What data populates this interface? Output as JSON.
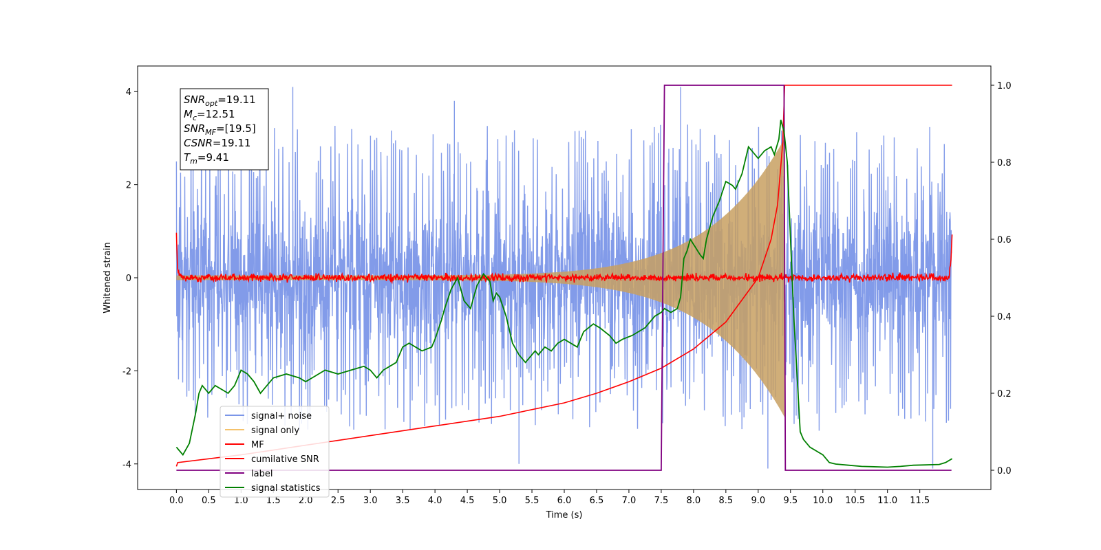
{
  "chart_data": {
    "type": "line",
    "title": "",
    "xlabel": "Time (s)",
    "ylabel": "Whitened strain",
    "xlim": [
      -0.6,
      12.6
    ],
    "ylim": [
      -4.55,
      4.55
    ],
    "ylim_right": [
      -0.05,
      1.05
    ],
    "x_ticks": [
      "0.0",
      "0.5",
      "1.0",
      "1.5",
      "2.0",
      "2.5",
      "3.0",
      "3.5",
      "4.0",
      "4.5",
      "5.0",
      "5.5",
      "6.0",
      "6.5",
      "7.0",
      "7.5",
      "8.0",
      "8.5",
      "9.0",
      "9.5",
      "10.0",
      "10.5",
      "11.0",
      "11.5"
    ],
    "y_ticks_left": [
      "-4",
      "-2",
      "0",
      "2",
      "4"
    ],
    "y_ticks_right": [
      "0.0",
      "0.2",
      "0.4",
      "0.6",
      "0.8",
      "1.0"
    ],
    "annotation": {
      "lines": [
        {
          "base": "SNR",
          "sub": "opt",
          "value": "=19.11"
        },
        {
          "base": "M",
          "sub": "c",
          "value": "=12.51"
        },
        {
          "base": "SNR",
          "sub": "MF",
          "value": "=[19.5]"
        },
        {
          "base": "CSNR",
          "sub": "",
          "value": "=19.11"
        },
        {
          "base": "T",
          "sub": "m",
          "value": "=9.41"
        }
      ]
    },
    "legend": {
      "placement": "lower-left",
      "entries": [
        {
          "label": "signal+ noise",
          "color": "#7b96e8"
        },
        {
          "label": "signal only",
          "color": "#f5c26b"
        },
        {
          "label": "MF",
          "color": "#ff0000"
        },
        {
          "label": "cumilative SNR",
          "color": "#ff0000"
        },
        {
          "label": "label",
          "color": "#800080"
        },
        {
          "label": "signal statistics",
          "color": "#008000"
        }
      ]
    },
    "series": [
      {
        "name": "signal+ noise",
        "axis": "left",
        "style": "noise band",
        "color": "#7b96e8",
        "x_range": [
          0.0,
          11.99
        ],
        "envelope": [
          -3.0,
          3.0
        ],
        "spikes": [
          [
            1.8,
            4.1
          ],
          [
            7.8,
            4.1
          ],
          [
            9.15,
            -4.1
          ],
          [
            11.7,
            -4.1
          ],
          [
            4.3,
            3.8
          ],
          [
            5.3,
            -4.0
          ]
        ]
      },
      {
        "name": "signal only",
        "axis": "left",
        "style": "chirp",
        "color": "#f5c26b",
        "x_range": [
          0.0,
          9.41
        ],
        "amplitude_start": 0.05,
        "amplitude_end": 3.0
      },
      {
        "name": "MF",
        "axis": "left",
        "color": "#ff0000",
        "points": [
          [
            0.0,
            1.0
          ],
          [
            0.02,
            0.1
          ],
          [
            0.1,
            0.0
          ],
          [
            11.95,
            0.0
          ],
          [
            11.98,
            0.3
          ],
          [
            12.0,
            0.9
          ]
        ],
        "noise": 0.1
      },
      {
        "name": "cumilative SNR",
        "axis": "right",
        "color": "#ff0000",
        "points": [
          [
            0.0,
            0.01
          ],
          [
            0.02,
            0.02
          ],
          [
            1.0,
            0.04
          ],
          [
            2.0,
            0.065
          ],
          [
            3.0,
            0.09
          ],
          [
            4.0,
            0.115
          ],
          [
            5.0,
            0.14
          ],
          [
            6.0,
            0.175
          ],
          [
            6.5,
            0.2
          ],
          [
            7.0,
            0.23
          ],
          [
            7.5,
            0.265
          ],
          [
            8.0,
            0.315
          ],
          [
            8.5,
            0.385
          ],
          [
            9.0,
            0.5
          ],
          [
            9.2,
            0.6
          ],
          [
            9.3,
            0.69
          ],
          [
            9.38,
            0.85
          ],
          [
            9.41,
            1.0
          ],
          [
            12.0,
            1.0
          ]
        ]
      },
      {
        "name": "label",
        "axis": "right",
        "color": "#800080",
        "points": [
          [
            0.0,
            0.0
          ],
          [
            7.5,
            0.0
          ],
          [
            7.55,
            1.0
          ],
          [
            9.4,
            1.0
          ],
          [
            9.42,
            0.0
          ],
          [
            11.99,
            0.0
          ]
        ]
      },
      {
        "name": "signal statistics",
        "axis": "right",
        "color": "#008000",
        "points": [
          [
            0.0,
            0.06
          ],
          [
            0.05,
            0.05
          ],
          [
            0.1,
            0.04
          ],
          [
            0.2,
            0.07
          ],
          [
            0.3,
            0.15
          ],
          [
            0.35,
            0.2
          ],
          [
            0.4,
            0.22
          ],
          [
            0.5,
            0.2
          ],
          [
            0.6,
            0.22
          ],
          [
            0.7,
            0.21
          ],
          [
            0.8,
            0.2
          ],
          [
            0.9,
            0.22
          ],
          [
            1.0,
            0.26
          ],
          [
            1.1,
            0.25
          ],
          [
            1.2,
            0.23
          ],
          [
            1.3,
            0.2
          ],
          [
            1.5,
            0.24
          ],
          [
            1.7,
            0.25
          ],
          [
            1.9,
            0.24
          ],
          [
            2.0,
            0.23
          ],
          [
            2.1,
            0.24
          ],
          [
            2.3,
            0.26
          ],
          [
            2.5,
            0.25
          ],
          [
            2.7,
            0.26
          ],
          [
            2.9,
            0.27
          ],
          [
            3.0,
            0.26
          ],
          [
            3.1,
            0.24
          ],
          [
            3.2,
            0.26
          ],
          [
            3.4,
            0.28
          ],
          [
            3.5,
            0.32
          ],
          [
            3.6,
            0.33
          ],
          [
            3.7,
            0.32
          ],
          [
            3.8,
            0.31
          ],
          [
            3.95,
            0.32
          ],
          [
            4.0,
            0.34
          ],
          [
            4.1,
            0.39
          ],
          [
            4.15,
            0.42
          ],
          [
            4.25,
            0.47
          ],
          [
            4.35,
            0.5
          ],
          [
            4.45,
            0.44
          ],
          [
            4.55,
            0.42
          ],
          [
            4.6,
            0.45
          ],
          [
            4.65,
            0.48
          ],
          [
            4.75,
            0.51
          ],
          [
            4.85,
            0.49
          ],
          [
            4.9,
            0.44
          ],
          [
            4.95,
            0.46
          ],
          [
            5.0,
            0.45
          ],
          [
            5.1,
            0.4
          ],
          [
            5.2,
            0.33
          ],
          [
            5.3,
            0.3
          ],
          [
            5.4,
            0.28
          ],
          [
            5.55,
            0.31
          ],
          [
            5.6,
            0.3
          ],
          [
            5.7,
            0.32
          ],
          [
            5.8,
            0.31
          ],
          [
            5.85,
            0.32
          ],
          [
            5.9,
            0.33
          ],
          [
            6.0,
            0.34
          ],
          [
            6.1,
            0.33
          ],
          [
            6.2,
            0.32
          ],
          [
            6.3,
            0.36
          ],
          [
            6.45,
            0.38
          ],
          [
            6.55,
            0.37
          ],
          [
            6.7,
            0.35
          ],
          [
            6.8,
            0.33
          ],
          [
            6.9,
            0.34
          ],
          [
            7.05,
            0.35
          ],
          [
            7.15,
            0.36
          ],
          [
            7.25,
            0.37
          ],
          [
            7.3,
            0.38
          ],
          [
            7.4,
            0.4
          ],
          [
            7.5,
            0.41
          ],
          [
            7.55,
            0.42
          ],
          [
            7.65,
            0.41
          ],
          [
            7.75,
            0.42
          ],
          [
            7.8,
            0.45
          ],
          [
            7.85,
            0.55
          ],
          [
            7.9,
            0.57
          ],
          [
            7.95,
            0.6
          ],
          [
            8.1,
            0.56
          ],
          [
            8.15,
            0.55
          ],
          [
            8.2,
            0.6
          ],
          [
            8.3,
            0.66
          ],
          [
            8.4,
            0.7
          ],
          [
            8.5,
            0.75
          ],
          [
            8.6,
            0.74
          ],
          [
            8.65,
            0.73
          ],
          [
            8.75,
            0.77
          ],
          [
            8.85,
            0.84
          ],
          [
            8.9,
            0.83
          ],
          [
            9.0,
            0.81
          ],
          [
            9.1,
            0.83
          ],
          [
            9.2,
            0.84
          ],
          [
            9.25,
            0.82
          ],
          [
            9.32,
            0.86
          ],
          [
            9.35,
            0.91
          ],
          [
            9.4,
            0.88
          ],
          [
            9.45,
            0.8
          ],
          [
            9.5,
            0.6
          ],
          [
            9.55,
            0.4
          ],
          [
            9.6,
            0.25
          ],
          [
            9.65,
            0.1
          ],
          [
            9.7,
            0.08
          ],
          [
            9.8,
            0.06
          ],
          [
            9.9,
            0.05
          ],
          [
            10.0,
            0.04
          ],
          [
            10.1,
            0.02
          ],
          [
            10.2,
            0.016
          ],
          [
            10.4,
            0.013
          ],
          [
            10.6,
            0.01
          ],
          [
            11.0,
            0.008
          ],
          [
            11.2,
            0.01
          ],
          [
            11.4,
            0.013
          ],
          [
            11.6,
            0.014
          ],
          [
            11.8,
            0.015
          ],
          [
            11.9,
            0.02
          ],
          [
            12.0,
            0.03
          ]
        ]
      }
    ]
  }
}
